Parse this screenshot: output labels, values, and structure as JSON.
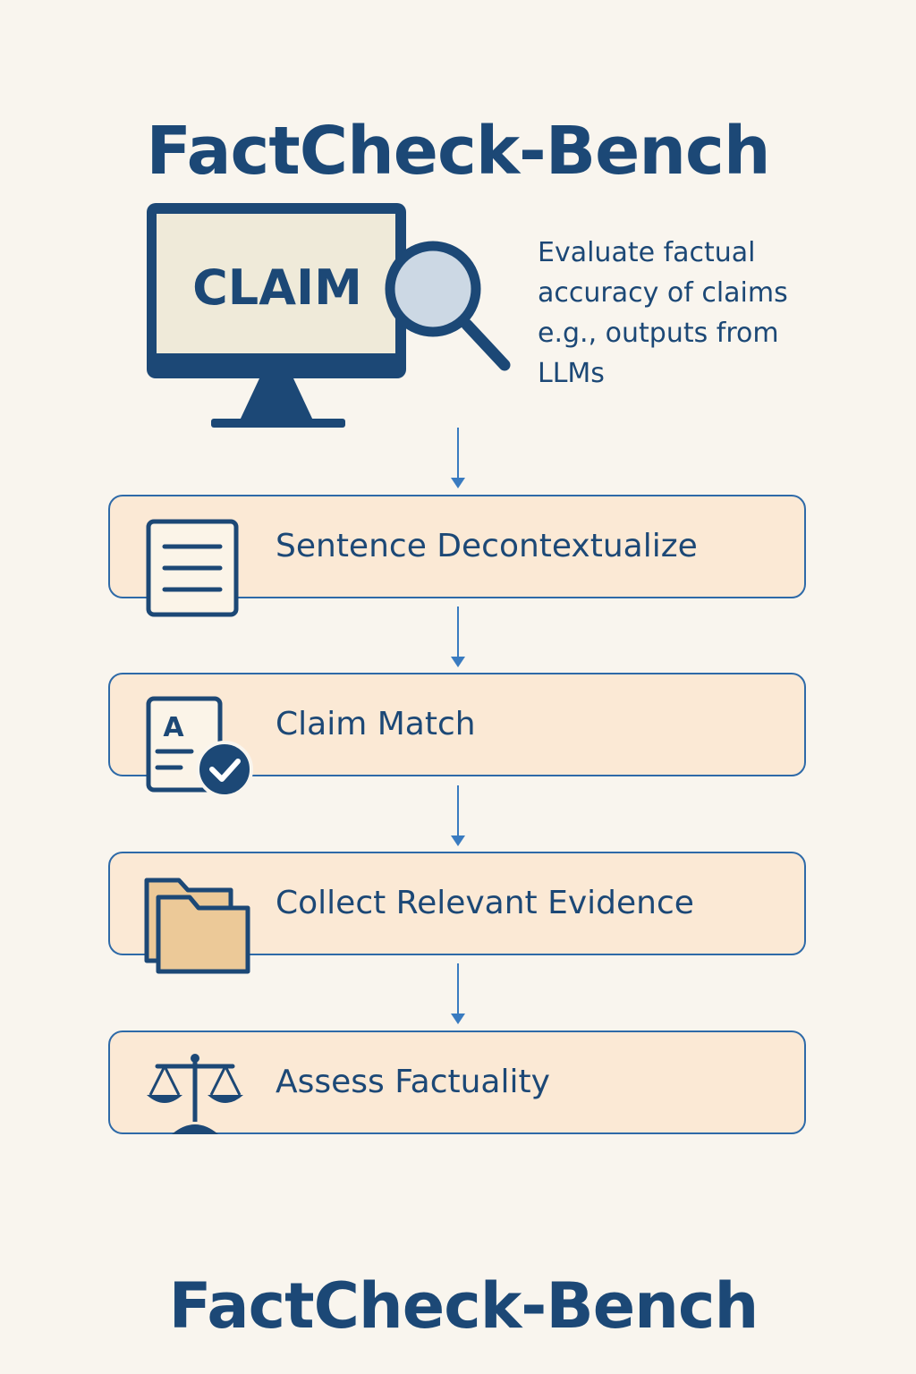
{
  "title_top": "FactCheck-Bench",
  "title_bottom": "FactCheck-Bench",
  "illustration": {
    "screen_text": "CLAIM",
    "icons": [
      "monitor-icon",
      "magnifying-glass-icon"
    ]
  },
  "description": "Evaluate factual accuracy of claims e.g., outputs from LLMs",
  "steps": [
    {
      "label": "Sentence Decontextualize",
      "icon": "document-lines-icon"
    },
    {
      "label": "Claim Match",
      "icon": "document-check-icon",
      "icon_letter": "A"
    },
    {
      "label": "Collect Relevant Evidence",
      "icon": "folders-icon"
    },
    {
      "label": "Assess Factuality",
      "icon": "balance-scale-icon"
    }
  ],
  "colors": {
    "background": "#f9f5ee",
    "primary": "#1c4876",
    "box_fill": "#fbe9d5",
    "box_border": "#2e6aa8",
    "arrow": "#3a7bc0",
    "folder": "#ecc998"
  }
}
